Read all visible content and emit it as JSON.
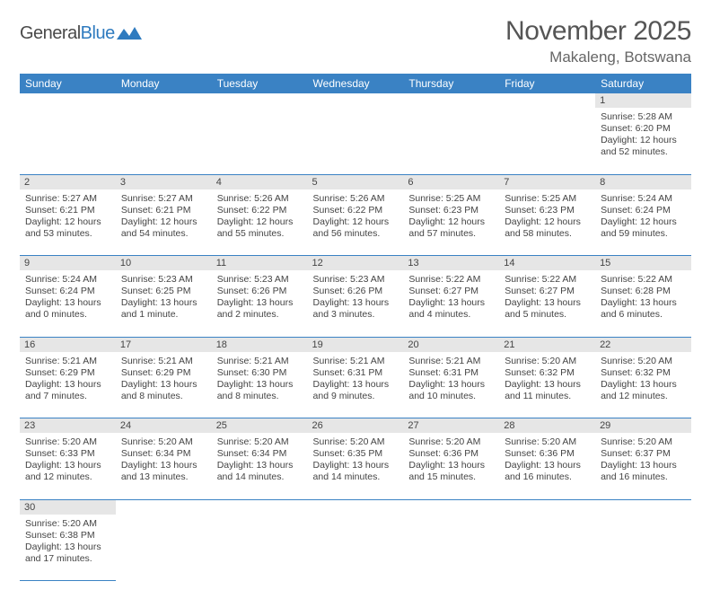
{
  "logo": {
    "text_general": "General",
    "text_blue": "Blue"
  },
  "title": "November 2025",
  "location": "Makaleng, Botswana",
  "header_bg": "#3a82c4",
  "daynum_bg": "#e6e6e6",
  "weekdays": [
    "Sunday",
    "Monday",
    "Tuesday",
    "Wednesday",
    "Thursday",
    "Friday",
    "Saturday"
  ],
  "weeks": [
    [
      null,
      null,
      null,
      null,
      null,
      null,
      {
        "n": "1",
        "sr": "5:28 AM",
        "ss": "6:20 PM",
        "dl": "12 hours and 52 minutes."
      }
    ],
    [
      {
        "n": "2",
        "sr": "5:27 AM",
        "ss": "6:21 PM",
        "dl": "12 hours and 53 minutes."
      },
      {
        "n": "3",
        "sr": "5:27 AM",
        "ss": "6:21 PM",
        "dl": "12 hours and 54 minutes."
      },
      {
        "n": "4",
        "sr": "5:26 AM",
        "ss": "6:22 PM",
        "dl": "12 hours and 55 minutes."
      },
      {
        "n": "5",
        "sr": "5:26 AM",
        "ss": "6:22 PM",
        "dl": "12 hours and 56 minutes."
      },
      {
        "n": "6",
        "sr": "5:25 AM",
        "ss": "6:23 PM",
        "dl": "12 hours and 57 minutes."
      },
      {
        "n": "7",
        "sr": "5:25 AM",
        "ss": "6:23 PM",
        "dl": "12 hours and 58 minutes."
      },
      {
        "n": "8",
        "sr": "5:24 AM",
        "ss": "6:24 PM",
        "dl": "12 hours and 59 minutes."
      }
    ],
    [
      {
        "n": "9",
        "sr": "5:24 AM",
        "ss": "6:24 PM",
        "dl": "13 hours and 0 minutes."
      },
      {
        "n": "10",
        "sr": "5:23 AM",
        "ss": "6:25 PM",
        "dl": "13 hours and 1 minute."
      },
      {
        "n": "11",
        "sr": "5:23 AM",
        "ss": "6:26 PM",
        "dl": "13 hours and 2 minutes."
      },
      {
        "n": "12",
        "sr": "5:23 AM",
        "ss": "6:26 PM",
        "dl": "13 hours and 3 minutes."
      },
      {
        "n": "13",
        "sr": "5:22 AM",
        "ss": "6:27 PM",
        "dl": "13 hours and 4 minutes."
      },
      {
        "n": "14",
        "sr": "5:22 AM",
        "ss": "6:27 PM",
        "dl": "13 hours and 5 minutes."
      },
      {
        "n": "15",
        "sr": "5:22 AM",
        "ss": "6:28 PM",
        "dl": "13 hours and 6 minutes."
      }
    ],
    [
      {
        "n": "16",
        "sr": "5:21 AM",
        "ss": "6:29 PM",
        "dl": "13 hours and 7 minutes."
      },
      {
        "n": "17",
        "sr": "5:21 AM",
        "ss": "6:29 PM",
        "dl": "13 hours and 8 minutes."
      },
      {
        "n": "18",
        "sr": "5:21 AM",
        "ss": "6:30 PM",
        "dl": "13 hours and 8 minutes."
      },
      {
        "n": "19",
        "sr": "5:21 AM",
        "ss": "6:31 PM",
        "dl": "13 hours and 9 minutes."
      },
      {
        "n": "20",
        "sr": "5:21 AM",
        "ss": "6:31 PM",
        "dl": "13 hours and 10 minutes."
      },
      {
        "n": "21",
        "sr": "5:20 AM",
        "ss": "6:32 PM",
        "dl": "13 hours and 11 minutes."
      },
      {
        "n": "22",
        "sr": "5:20 AM",
        "ss": "6:32 PM",
        "dl": "13 hours and 12 minutes."
      }
    ],
    [
      {
        "n": "23",
        "sr": "5:20 AM",
        "ss": "6:33 PM",
        "dl": "13 hours and 12 minutes."
      },
      {
        "n": "24",
        "sr": "5:20 AM",
        "ss": "6:34 PM",
        "dl": "13 hours and 13 minutes."
      },
      {
        "n": "25",
        "sr": "5:20 AM",
        "ss": "6:34 PM",
        "dl": "13 hours and 14 minutes."
      },
      {
        "n": "26",
        "sr": "5:20 AM",
        "ss": "6:35 PM",
        "dl": "13 hours and 14 minutes."
      },
      {
        "n": "27",
        "sr": "5:20 AM",
        "ss": "6:36 PM",
        "dl": "13 hours and 15 minutes."
      },
      {
        "n": "28",
        "sr": "5:20 AM",
        "ss": "6:36 PM",
        "dl": "13 hours and 16 minutes."
      },
      {
        "n": "29",
        "sr": "5:20 AM",
        "ss": "6:37 PM",
        "dl": "13 hours and 16 minutes."
      }
    ],
    [
      {
        "n": "30",
        "sr": "5:20 AM",
        "ss": "6:38 PM",
        "dl": "13 hours and 17 minutes."
      },
      null,
      null,
      null,
      null,
      null,
      null
    ]
  ],
  "labels": {
    "sunrise": "Sunrise:",
    "sunset": "Sunset:",
    "daylight": "Daylight:"
  }
}
